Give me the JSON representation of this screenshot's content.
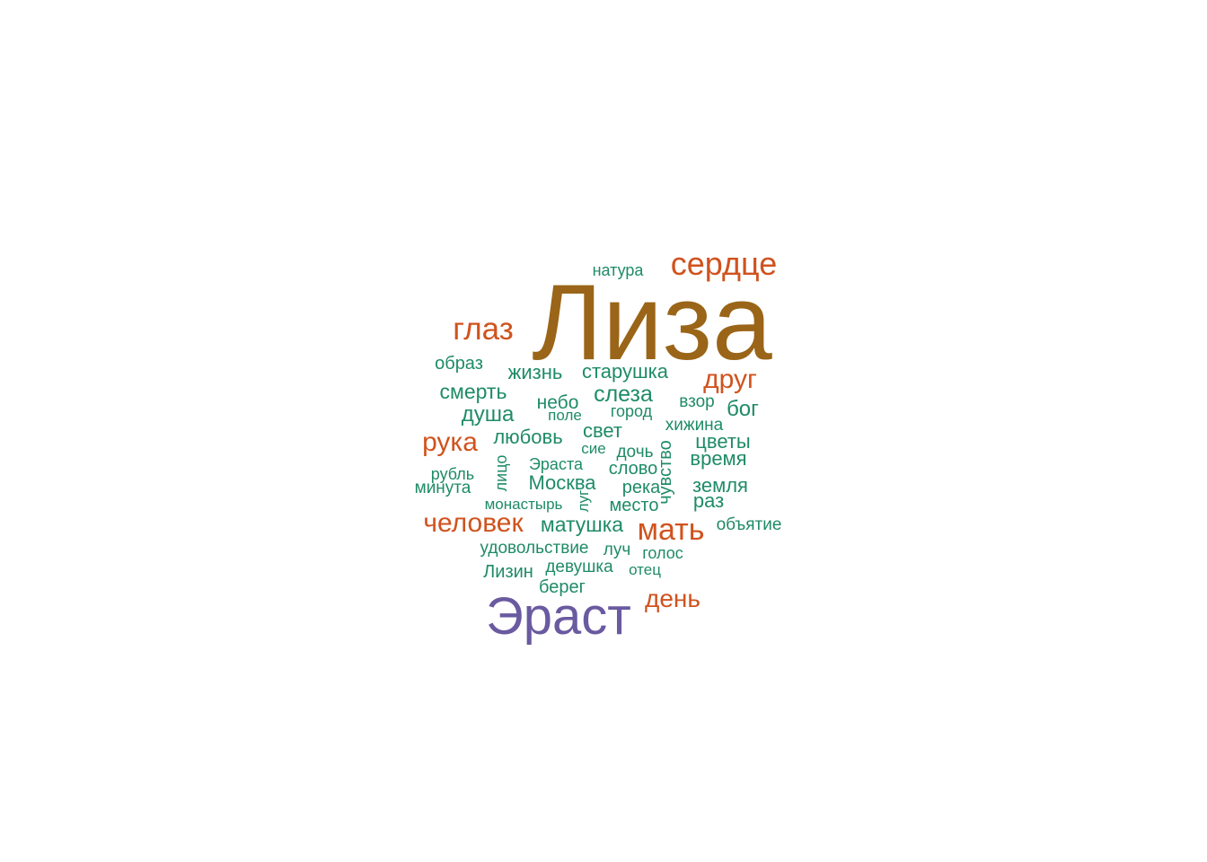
{
  "palette": {
    "top": "#9a6518",
    "second": "#6a5aa0",
    "orange": "#d0531e",
    "green": "#1f8b68"
  },
  "words": [
    {
      "text": "Лиза",
      "tier": "top"
    },
    {
      "text": "Эраст",
      "tier": "second"
    },
    {
      "text": "сердце",
      "tier": "orange"
    },
    {
      "text": "глаз",
      "tier": "orange"
    },
    {
      "text": "друг",
      "tier": "orange"
    },
    {
      "text": "рука",
      "tier": "orange"
    },
    {
      "text": "человек",
      "tier": "orange"
    },
    {
      "text": "мать",
      "tier": "orange"
    },
    {
      "text": "день",
      "tier": "orange"
    },
    {
      "text": "натура",
      "tier": "green"
    },
    {
      "text": "образ",
      "tier": "green"
    },
    {
      "text": "жизнь",
      "tier": "green"
    },
    {
      "text": "старушка",
      "tier": "green"
    },
    {
      "text": "смерть",
      "tier": "green"
    },
    {
      "text": "слеза",
      "tier": "green"
    },
    {
      "text": "небо",
      "tier": "green"
    },
    {
      "text": "взор",
      "tier": "green"
    },
    {
      "text": "бог",
      "tier": "green"
    },
    {
      "text": "душа",
      "tier": "green"
    },
    {
      "text": "поле",
      "tier": "green"
    },
    {
      "text": "город",
      "tier": "green"
    },
    {
      "text": "хижина",
      "tier": "green"
    },
    {
      "text": "любовь",
      "tier": "green"
    },
    {
      "text": "свет",
      "tier": "green"
    },
    {
      "text": "цветы",
      "tier": "green"
    },
    {
      "text": "сие",
      "tier": "green"
    },
    {
      "text": "дочь",
      "tier": "green"
    },
    {
      "text": "время",
      "tier": "green"
    },
    {
      "text": "Эраста",
      "tier": "green"
    },
    {
      "text": "слово",
      "tier": "green"
    },
    {
      "text": "рубль",
      "tier": "green"
    },
    {
      "text": "лицо",
      "tier": "green"
    },
    {
      "text": "Москва",
      "tier": "green"
    },
    {
      "text": "река",
      "tier": "green"
    },
    {
      "text": "чувство",
      "tier": "green"
    },
    {
      "text": "земля",
      "tier": "green"
    },
    {
      "text": "минута",
      "tier": "green"
    },
    {
      "text": "монастырь",
      "tier": "green"
    },
    {
      "text": "луг",
      "tier": "green"
    },
    {
      "text": "место",
      "tier": "green"
    },
    {
      "text": "раз",
      "tier": "green"
    },
    {
      "text": "матушка",
      "tier": "green"
    },
    {
      "text": "объятие",
      "tier": "green"
    },
    {
      "text": "удовольствие",
      "tier": "green"
    },
    {
      "text": "луч",
      "tier": "green"
    },
    {
      "text": "голос",
      "tier": "green"
    },
    {
      "text": "Лизин",
      "tier": "green"
    },
    {
      "text": "девушка",
      "tier": "green"
    },
    {
      "text": "отец",
      "tier": "green"
    },
    {
      "text": "берег",
      "tier": "green"
    }
  ]
}
